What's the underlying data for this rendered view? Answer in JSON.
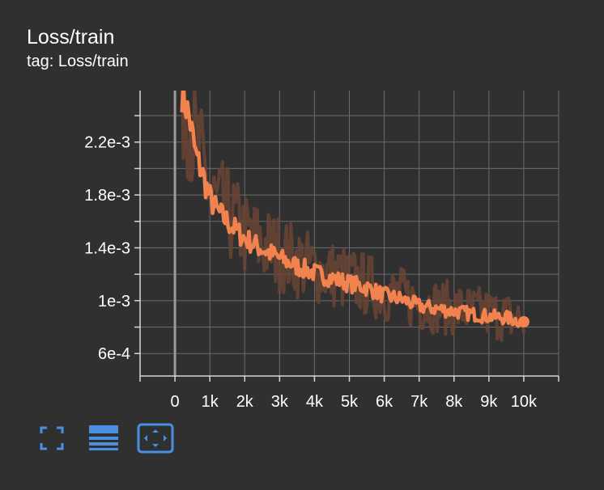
{
  "card": {
    "title": "Loss/train",
    "subtitle": "tag: Loss/train"
  },
  "colors": {
    "background": "#303030",
    "smoothed": "#f2834e",
    "raw": "#6a4434",
    "grid": "#6b6b6b",
    "axis": "#d6d6d6",
    "toolbar_icon": "#4a90e2"
  },
  "toolbar": {
    "buttons": [
      {
        "name": "fullscreen-icon"
      },
      {
        "name": "list-icon"
      },
      {
        "name": "fit-domain-icon"
      }
    ]
  },
  "chart_data": {
    "type": "line",
    "x_ticks": [
      0,
      1000,
      2000,
      3000,
      4000,
      5000,
      6000,
      7000,
      8000,
      9000,
      10000
    ],
    "x_tick_labels": [
      "0",
      "1k",
      "2k",
      "3k",
      "4k",
      "5k",
      "6k",
      "7k",
      "8k",
      "9k",
      "10k"
    ],
    "y_ticks": [
      0.0006,
      0.001,
      0.0014,
      0.0018,
      0.0022
    ],
    "y_tick_labels": [
      "6e-4",
      "1e-3",
      "1.4e-3",
      "1.8e-3",
      "2.2e-3"
    ],
    "xlim": [
      -1000,
      11000
    ],
    "ylim": [
      0.00043,
      0.00259
    ],
    "grid": true,
    "series": [
      {
        "role": "smoothed",
        "x": [
          200,
          400,
          600,
          800,
          1000,
          1200,
          1500,
          1800,
          2000,
          2500,
          3000,
          3500,
          4000,
          4500,
          5000,
          5500,
          6000,
          6500,
          7000,
          7500,
          8000,
          8500,
          9000,
          9500,
          10000
        ],
        "y": [
          0.00258,
          0.0024,
          0.0021,
          0.00195,
          0.00178,
          0.00168,
          0.0016,
          0.00152,
          0.00147,
          0.00139,
          0.00132,
          0.00126,
          0.00121,
          0.00117,
          0.00113,
          0.0011,
          0.00104,
          0.00101,
          0.00096,
          0.00094,
          0.00092,
          0.0009,
          0.00088,
          0.00087,
          0.00084
        ]
      },
      {
        "role": "raw",
        "x": [
          200,
          400,
          600,
          800,
          1000,
          1200,
          1500,
          1800,
          2000,
          2500,
          3000,
          3500,
          4000,
          4500,
          5000,
          5500,
          6000,
          6500,
          7000,
          7500,
          8000,
          8500,
          9000,
          9500,
          10000
        ],
        "y": [
          0.00258,
          0.00245,
          0.00215,
          0.002,
          0.00183,
          0.00172,
          0.00166,
          0.00157,
          0.0015,
          0.00143,
          0.00136,
          0.0013,
          0.00124,
          0.0012,
          0.00116,
          0.00112,
          0.00107,
          0.00103,
          0.00098,
          0.00096,
          0.00094,
          0.00092,
          0.0009,
          0.00088,
          0.00085
        ]
      }
    ]
  }
}
